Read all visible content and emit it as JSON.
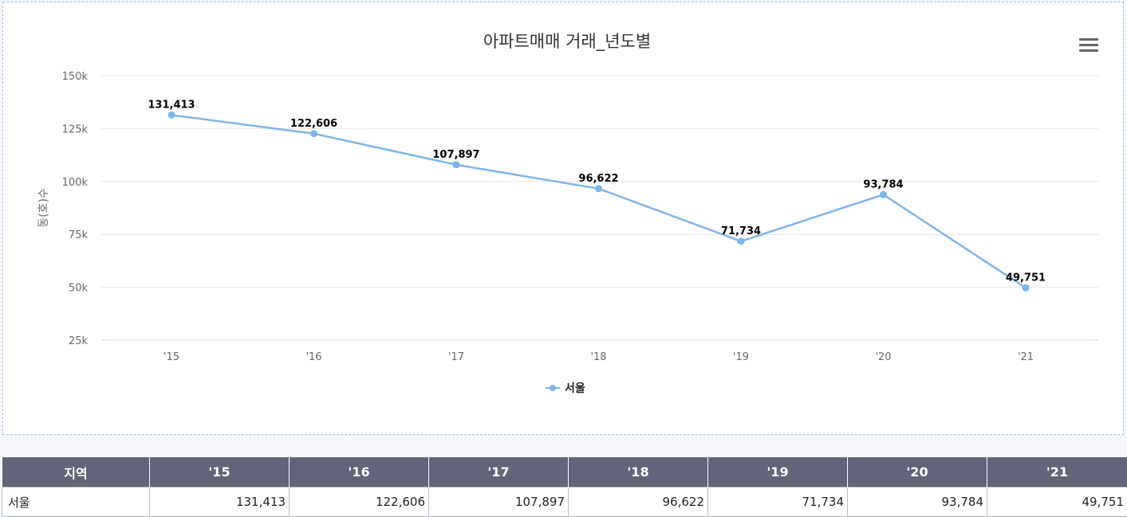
{
  "chart_data": {
    "type": "line",
    "title": "아파트매매 거래_년도별",
    "ylabel": "동(호)수",
    "xlabel": "",
    "categories": [
      "'15",
      "'16",
      "'17",
      "'18",
      "'19",
      "'20",
      "'21"
    ],
    "series": [
      {
        "name": "서울",
        "values": [
          131413,
          122606,
          107897,
          96622,
          71734,
          93784,
          49751
        ]
      }
    ],
    "data_labels": [
      "131,413",
      "122,606",
      "107,897",
      "96,622",
      "71,734",
      "93,784",
      "49,751"
    ],
    "ylim": [
      25000,
      150000
    ],
    "yticks": [
      25000,
      50000,
      75000,
      100000,
      125000,
      150000
    ],
    "ytick_labels": [
      "25k",
      "50k",
      "75k",
      "100k",
      "125k",
      "150k"
    ],
    "grid": true,
    "legend_position": "bottom-center",
    "line_color": "#7cb5ec"
  },
  "menu_icon": "hamburger-menu-icon",
  "table": {
    "headers": [
      "지역",
      "'15",
      "'16",
      "'17",
      "'18",
      "'19",
      "'20",
      "'21"
    ],
    "rows": [
      [
        "서울",
        "131,413",
        "122,606",
        "107,897",
        "96,622",
        "71,734",
        "93,784",
        "49,751"
      ]
    ],
    "header_color": "#626579"
  }
}
